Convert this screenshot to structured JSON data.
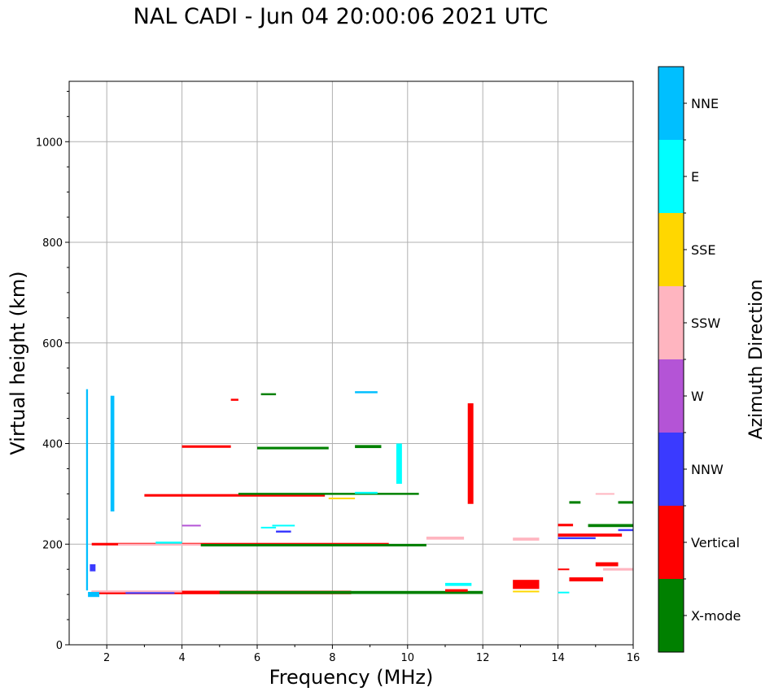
{
  "chart_data": {
    "type": "scatter",
    "title": "NAL CADI - Jun 04 20:00:06 2021 UTC",
    "xlabel": "Frequency (MHz)",
    "ylabel": "Virtual height (km)",
    "xlim": [
      1,
      16
    ],
    "ylim": [
      0,
      1120
    ],
    "xticks": [
      2,
      4,
      6,
      8,
      10,
      12,
      14,
      16
    ],
    "yticks": [
      0,
      200,
      400,
      600,
      800,
      1000
    ],
    "grid": true,
    "colorbar": {
      "label": "Azimuth Direction",
      "categories": [
        {
          "name": "X-mode",
          "color": "#008000"
        },
        {
          "name": "Vertical",
          "color": "#ff0000"
        },
        {
          "name": "NNW",
          "color": "#3a3aff"
        },
        {
          "name": "W",
          "color": "#b454d6"
        },
        {
          "name": "SSW",
          "color": "#ffb5c0"
        },
        {
          "name": "SSE",
          "color": "#ffd700"
        },
        {
          "name": "E",
          "color": "#00ffff"
        },
        {
          "name": "NNE",
          "color": "#00bfff"
        }
      ]
    },
    "echo_traces": [
      {
        "cat": "Vertical",
        "x": [
          1.6,
          8.5
        ],
        "h": 104,
        "th": 7
      },
      {
        "cat": "X-mode",
        "x": [
          5.0,
          12.0
        ],
        "h": 104,
        "th": 6
      },
      {
        "cat": "SSW",
        "x": [
          1.6,
          4.0
        ],
        "h": 106,
        "th": 4
      },
      {
        "cat": "NNW",
        "x": [
          2.5,
          3.8
        ],
        "h": 103,
        "th": 3
      },
      {
        "cat": "Vertical",
        "x": [
          1.6,
          9.5
        ],
        "h": 200,
        "th": 5
      },
      {
        "cat": "X-mode",
        "x": [
          4.5,
          10.5
        ],
        "h": 198,
        "th": 5
      },
      {
        "cat": "SSW",
        "x": [
          2.3,
          4.5
        ],
        "h": 199,
        "th": 4
      },
      {
        "cat": "E",
        "x": [
          3.3,
          4.0
        ],
        "h": 203,
        "th": 4
      },
      {
        "cat": "Vertical",
        "x": [
          3.0,
          7.8
        ],
        "h": 297,
        "th": 5
      },
      {
        "cat": "X-mode",
        "x": [
          5.5,
          10.3
        ],
        "h": 300,
        "th": 4
      },
      {
        "cat": "E",
        "x": [
          8.6,
          9.2
        ],
        "h": 302,
        "th": 4
      },
      {
        "cat": "SSE",
        "x": [
          7.9,
          8.6
        ],
        "h": 291,
        "th": 3
      },
      {
        "cat": "Vertical",
        "x": [
          4.0,
          5.3
        ],
        "h": 394,
        "th": 5
      },
      {
        "cat": "X-mode",
        "x": [
          6.0,
          7.9
        ],
        "h": 391,
        "th": 5
      },
      {
        "cat": "X-mode",
        "x": [
          8.6,
          9.3
        ],
        "h": 394,
        "th": 6
      },
      {
        "cat": "Vertical",
        "x": [
          12.8,
          13.5
        ],
        "h": 120,
        "th": 18
      },
      {
        "cat": "SSE",
        "x": [
          12.8,
          13.5
        ],
        "h": 106,
        "th": 3
      },
      {
        "cat": "Vertical",
        "x": [
          14.3,
          15.2
        ],
        "h": 130,
        "th": 8
      },
      {
        "cat": "Vertical",
        "x": [
          15.0,
          15.6
        ],
        "h": 160,
        "th": 8
      },
      {
        "cat": "SSW",
        "x": [
          15.2,
          16.0
        ],
        "h": 150,
        "th": 5
      },
      {
        "cat": "X-mode",
        "x": [
          14.8,
          16.0
        ],
        "h": 237,
        "th": 6
      },
      {
        "cat": "Vertical",
        "x": [
          14.0,
          15.7
        ],
        "h": 218,
        "th": 6
      },
      {
        "cat": "NNW",
        "x": [
          14.0,
          15.0
        ],
        "h": 212,
        "th": 4
      },
      {
        "cat": "SSW",
        "x": [
          12.8,
          13.5
        ],
        "h": 210,
        "th": 6
      },
      {
        "cat": "X-mode",
        "x": [
          14.3,
          14.6
        ],
        "h": 283,
        "th": 5
      },
      {
        "cat": "SSW",
        "x": [
          15.0,
          15.5
        ],
        "h": 300,
        "th": 3
      },
      {
        "cat": "X-mode",
        "x": [
          15.6,
          16.0
        ],
        "h": 283,
        "th": 5
      },
      {
        "cat": "NNW",
        "x": [
          15.6,
          16.0
        ],
        "h": 228,
        "th": 4
      },
      {
        "cat": "SSW",
        "x": [
          10.5,
          11.5
        ],
        "h": 212,
        "th": 6
      },
      {
        "cat": "E",
        "x": [
          11.0,
          11.7
        ],
        "h": 120,
        "th": 6
      },
      {
        "cat": "Vertical",
        "x": [
          11.0,
          11.6
        ],
        "h": 108,
        "th": 5
      },
      {
        "cat": "NNE",
        "x": [
          8.6,
          9.2
        ],
        "h": 502,
        "th": 4
      },
      {
        "cat": "X-mode",
        "x": [
          6.1,
          6.5
        ],
        "h": 498,
        "th": 4
      },
      {
        "cat": "Vertical",
        "x": [
          5.3,
          5.5
        ],
        "h": 487,
        "th": 4
      },
      {
        "cat": "E",
        "x": [
          6.4,
          7.0
        ],
        "h": 237,
        "th": 3
      },
      {
        "cat": "W",
        "x": [
          4.0,
          4.5
        ],
        "h": 237,
        "th": 3
      },
      {
        "cat": "NNW",
        "x": [
          6.5,
          6.9
        ],
        "h": 225,
        "th": 4
      },
      {
        "cat": "E",
        "x": [
          6.1,
          6.5
        ],
        "h": 233,
        "th": 3
      },
      {
        "cat": "NNE",
        "x": [
          1.45,
          1.5
        ],
        "h": 308,
        "th": 400
      },
      {
        "cat": "NNE",
        "x": [
          2.1,
          2.2
        ],
        "h": 380,
        "th": 230
      },
      {
        "cat": "NNE",
        "x": [
          1.5,
          1.8
        ],
        "h": 100,
        "th": 10
      },
      {
        "cat": "NNW",
        "x": [
          1.55,
          1.7
        ],
        "h": 153,
        "th": 14
      },
      {
        "cat": "E",
        "x": [
          9.7,
          9.85
        ],
        "h": 360,
        "th": 80
      },
      {
        "cat": "Vertical",
        "x": [
          11.6,
          11.75
        ],
        "h": 380,
        "th": 200
      },
      {
        "cat": "Vertical",
        "x": [
          14.0,
          14.4
        ],
        "h": 238,
        "th": 5
      },
      {
        "cat": "Vertical",
        "x": [
          14.0,
          14.3
        ],
        "h": 150,
        "th": 3
      },
      {
        "cat": "E",
        "x": [
          14.0,
          14.3
        ],
        "h": 104,
        "th": 3
      }
    ]
  }
}
